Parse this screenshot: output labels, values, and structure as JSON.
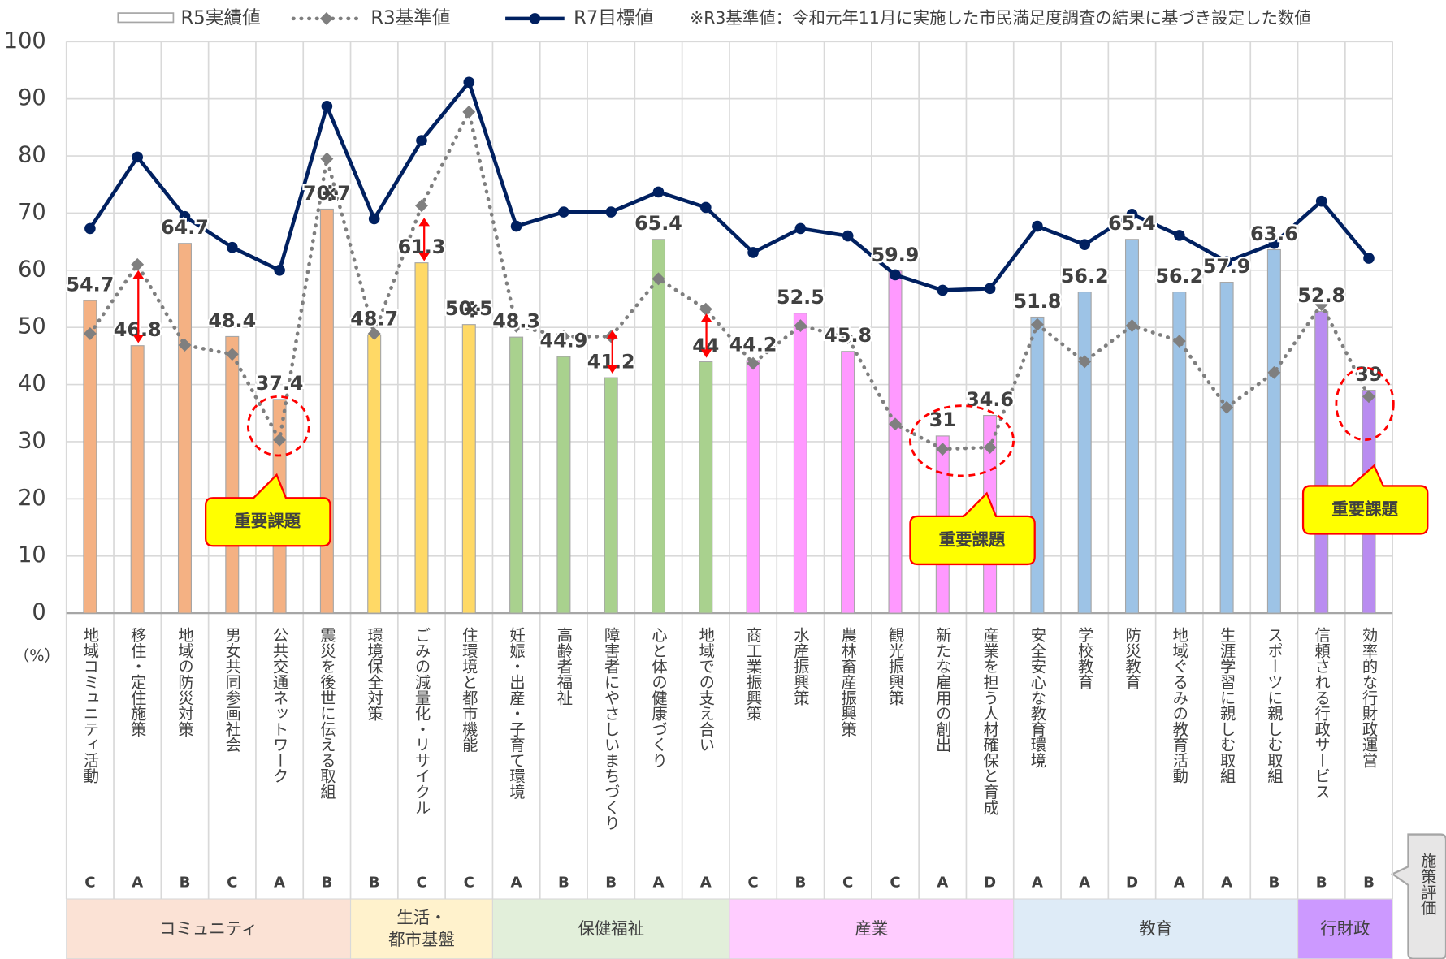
{
  "chart_data": {
    "type": "bar-line",
    "ylim": [
      0,
      100
    ],
    "yticks": [
      0,
      10,
      20,
      30,
      40,
      50,
      60,
      70,
      80,
      90,
      100
    ],
    "y_unit": "（%）",
    "grid": true,
    "note": "※R3基準値：令和元年11月に実施した市民満足度調査の結果に基づき設定した数値",
    "groups": [
      {
        "name": [
          "コミュニティ"
        ],
        "bar_color": "#f4b183",
        "band_color": "#fbe2d5",
        "categories": [
          "地域コミュニティ活動",
          "移住・定住施策",
          "地域の防災対策",
          "男女共同参画社会",
          "公共交通ネットワーク",
          "震災を後世に伝える取組"
        ]
      },
      {
        "name": [
          "生活・",
          "都市基盤"
        ],
        "bar_color": "#ffd966",
        "band_color": "#fff2cc",
        "categories": [
          "環境保全対策",
          "ごみの減量化・リサイクル",
          "住環境と都市機能"
        ]
      },
      {
        "name": [
          "保健福祉"
        ],
        "bar_color": "#a9d18e",
        "band_color": "#e2efda",
        "categories": [
          "妊娠・出産・子育て環境",
          "高齢者福祉",
          "障害者にやさしいまちづくり",
          "心と体の健康づくり",
          "地域での支え合い"
        ]
      },
      {
        "name": [
          "産業"
        ],
        "bar_color": "#ff99ff",
        "band_color": "#ffccff",
        "categories": [
          "商工業振興策",
          "水産振興策",
          "農林畜産振興策",
          "観光振興策",
          "新たな雇用の創出",
          "産業を担う人材確保と育成"
        ]
      },
      {
        "name": [
          "教育"
        ],
        "bar_color": "#9dc3e6",
        "band_color": "#deebf7",
        "categories": [
          "安全安心な教育環境",
          "学校教育",
          "防災教育",
          "地域ぐるみの教育活動",
          "生涯学習に親しむ取組",
          "スポーツに親しむ取組"
        ]
      },
      {
        "name": [
          "行財政"
        ],
        "bar_color": "#b98cf0",
        "band_color": "#cc99ff",
        "categories": [
          "信頼される行政サービス",
          "効率的な行財政運営"
        ]
      }
    ],
    "series": [
      {
        "name": "R5実績値",
        "kind": "bar",
        "color": "#a6a6a6",
        "values": [
          54.7,
          46.8,
          64.7,
          48.4,
          37.4,
          70.7,
          48.7,
          61.3,
          50.5,
          48.3,
          44.9,
          41.2,
          65.4,
          44,
          44.2,
          52.5,
          45.8,
          59.9,
          31,
          34.6,
          51.8,
          56.2,
          65.4,
          56.2,
          57.9,
          63.6,
          52.8,
          39
        ]
      },
      {
        "name": "R3基準値",
        "kind": "dotted-line",
        "color": "#7f7f7f",
        "values": [
          48.9,
          61.0,
          46.9,
          45.3,
          30.3,
          79.5,
          48.9,
          71.3,
          87.7,
          50.2,
          48.4,
          48.4,
          58.5,
          53.2,
          43.7,
          50.3,
          48.2,
          33.1,
          28.7,
          29.0,
          50.5,
          44.0,
          50.3,
          47.6,
          36.0,
          42.1,
          54.0,
          37.9
        ]
      },
      {
        "name": "R7目標値",
        "kind": "line",
        "color": "#002060",
        "values": [
          67.3,
          79.8,
          69.4,
          64.0,
          60.0,
          88.7,
          69.0,
          82.7,
          92.9,
          67.7,
          70.2,
          70.2,
          73.7,
          71.0,
          63.1,
          67.3,
          66.0,
          59.2,
          56.5,
          56.8,
          67.7,
          64.5,
          69.8,
          66.1,
          61.5,
          64.7,
          72.1,
          62.1
        ]
      }
    ],
    "grades": [
      "C",
      "A",
      "B",
      "C",
      "A",
      "B",
      "B",
      "C",
      "C",
      "A",
      "B",
      "B",
      "A",
      "A",
      "C",
      "B",
      "C",
      "C",
      "A",
      "D",
      "A",
      "A",
      "D",
      "A",
      "A",
      "B",
      "B",
      "B"
    ],
    "grade_colors": [
      "#7f7f7f",
      "#7f7f7f",
      "#7f7f7f",
      "#7f7f7f",
      "#ff0000",
      "#7f7f7f",
      "#7f7f7f",
      "#7f7f7f",
      "#7f7f7f",
      "#7f7f7f",
      "#7f7f7f",
      "#7f7f7f",
      "#7f7f7f",
      "#7f7f7f",
      "#7f7f7f",
      "#7f7f7f",
      "#7f7f7f",
      "#7f7f7f",
      "#ff0000",
      "#ff0000",
      "#7f7f7f",
      "#7f7f7f",
      "#7f7f7f",
      "#7f7f7f",
      "#7f7f7f",
      "#7f7f7f",
      "#7f7f7f",
      "#ff0000"
    ],
    "grade_label": "施策評価",
    "callouts": [
      "重要課題",
      "重要課題",
      "重要課題"
    ],
    "marks": [
      "※",
      "※"
    ]
  }
}
